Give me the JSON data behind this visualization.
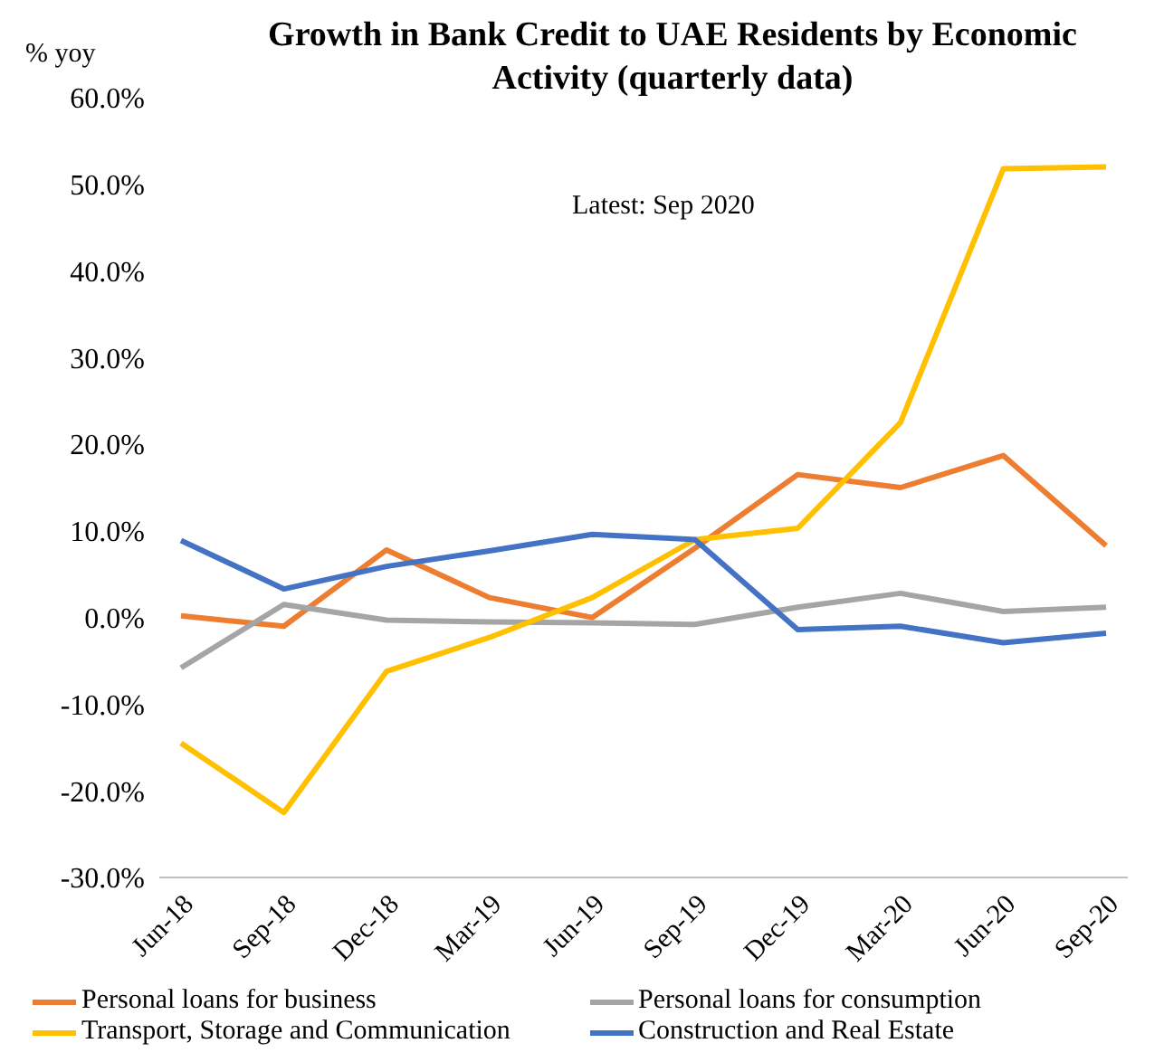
{
  "chart_data": {
    "type": "line",
    "title": "Growth in Bank Credit to UAE Residents by Economic Activity (quarterly data)",
    "ylabel": "% yoy",
    "annotations": [
      "Latest: Sep 2020"
    ],
    "categories": [
      "Jun-18",
      "Sep-18",
      "Dec-18",
      "Mar-19",
      "Jun-19",
      "Sep-19",
      "Dec-19",
      "Mar-20",
      "Jun-20",
      "Sep-20"
    ],
    "series": [
      {
        "name": "Personal loans for business",
        "color": "#ed7d31",
        "values": [
          0.2,
          -1.0,
          7.8,
          2.3,
          0.0,
          8.0,
          16.5,
          15.0,
          18.7,
          8.3
        ]
      },
      {
        "name": "Personal loans for consumption",
        "color": "#a5a5a5",
        "values": [
          -5.8,
          1.5,
          -0.3,
          -0.5,
          -0.6,
          -0.8,
          1.2,
          2.8,
          0.7,
          1.2
        ]
      },
      {
        "name": "Transport, Storage and Communication",
        "color": "#ffc000",
        "values": [
          -14.5,
          -22.5,
          -6.2,
          -2.3,
          2.3,
          9.0,
          10.3,
          22.5,
          51.8,
          52.0
        ]
      },
      {
        "name": "Construction and Real Estate",
        "color": "#4472c4",
        "values": [
          8.9,
          3.3,
          5.9,
          7.7,
          9.6,
          9.0,
          -1.4,
          -1.0,
          -2.9,
          -1.8
        ]
      }
    ],
    "ylim": [
      -30,
      60
    ],
    "yticks": [
      {
        "value": -30,
        "label": "-30.0%"
      },
      {
        "value": -20,
        "label": "-20.0%"
      },
      {
        "value": -10,
        "label": "-10.0%"
      },
      {
        "value": 0,
        "label": "0.0%"
      },
      {
        "value": 10,
        "label": "10.0%"
      },
      {
        "value": 20,
        "label": "20.0%"
      },
      {
        "value": 30,
        "label": "30.0%"
      },
      {
        "value": 40,
        "label": "40.0%"
      },
      {
        "value": 50,
        "label": "50.0%"
      },
      {
        "value": 60,
        "label": "60.0%"
      }
    ],
    "grid": false,
    "legend": "bottom",
    "marker": "none",
    "line_style": "solid"
  }
}
